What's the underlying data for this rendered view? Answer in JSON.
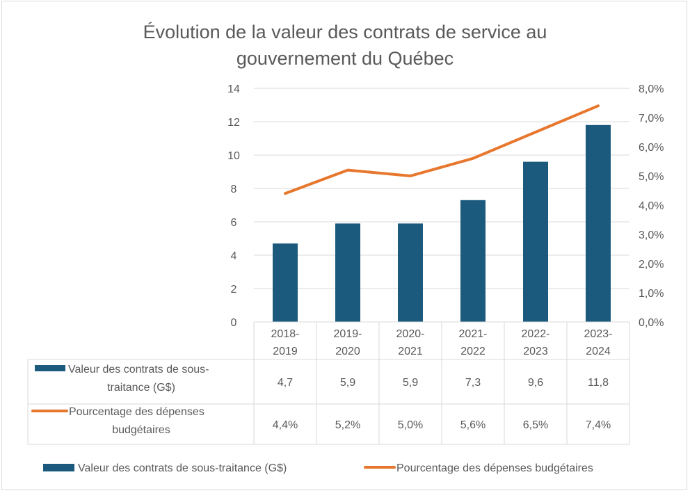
{
  "chart_data": {
    "type": "bar",
    "combo": "bar+line (secondary axis)",
    "title": "Évolution de la valeur des contrats de service au gouvernement du Québec",
    "title_lines": [
      "Évolution de la valeur des contrats de service au",
      "gouvernement du Québec"
    ],
    "categories": [
      {
        "line1": "2018-",
        "line2": "2019"
      },
      {
        "line1": "2019-",
        "line2": "2020"
      },
      {
        "line1": "2020-",
        "line2": "2021"
      },
      {
        "line1": "2021-",
        "line2": "2022"
      },
      {
        "line1": "2022-",
        "line2": "2023"
      },
      {
        "line1": "2023-",
        "line2": "2024"
      }
    ],
    "series": [
      {
        "name": "Valeur des contrats de sous-traitance (G$)",
        "name_lines": [
          "Valeur des contrats de sous-",
          "traitance (G$)"
        ],
        "type": "bar",
        "axis": "left",
        "color": "#1b5a7d",
        "values": [
          4.7,
          5.9,
          5.9,
          7.3,
          9.6,
          11.8
        ],
        "labels": [
          "4,7",
          "5,9",
          "5,9",
          "7,3",
          "9,6",
          "11,8"
        ]
      },
      {
        "name": "Pourcentage des dépenses budgétaires",
        "name_lines": [
          "Pourcentage des dépenses",
          "budgétaires"
        ],
        "type": "line",
        "axis": "right",
        "color": "#e8772e",
        "values": [
          4.4,
          5.2,
          5.0,
          5.6,
          6.5,
          7.4
        ],
        "labels": [
          "4,4%",
          "5,2%",
          "5,0%",
          "5,6%",
          "6,5%",
          "7,4%"
        ]
      }
    ],
    "y_left": {
      "min": 0,
      "max": 14,
      "ticks": [
        "0",
        "2",
        "4",
        "6",
        "8",
        "10",
        "12",
        "14"
      ]
    },
    "y_right": {
      "min": 0,
      "max": 8,
      "ticks": [
        "0,0%",
        "1,0%",
        "2,0%",
        "3,0%",
        "4,0%",
        "5,0%",
        "6,0%",
        "7,0%",
        "8,0%"
      ]
    },
    "xlabel": "",
    "ylabel": "",
    "grid": true,
    "data_table": true,
    "legend": "bottom"
  }
}
